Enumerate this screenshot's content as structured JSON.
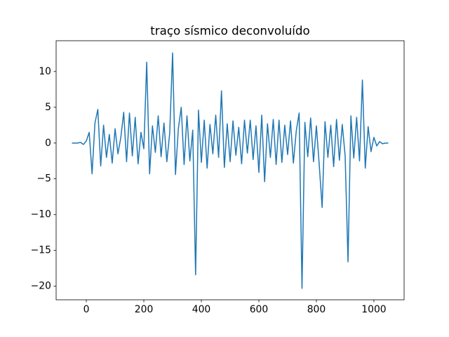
{
  "chart_data": {
    "type": "line",
    "title": "traço sísmico deconvoluído",
    "x": [
      -50,
      -40,
      -30,
      -20,
      -10,
      0,
      10,
      20,
      30,
      40,
      50,
      60,
      70,
      80,
      90,
      100,
      110,
      120,
      130,
      140,
      150,
      160,
      170,
      180,
      190,
      200,
      210,
      220,
      230,
      240,
      250,
      260,
      270,
      280,
      290,
      300,
      310,
      320,
      330,
      340,
      350,
      360,
      370,
      380,
      390,
      400,
      410,
      420,
      430,
      440,
      450,
      460,
      470,
      480,
      490,
      500,
      510,
      520,
      530,
      540,
      550,
      560,
      570,
      580,
      590,
      600,
      610,
      620,
      630,
      640,
      650,
      660,
      670,
      680,
      690,
      700,
      710,
      720,
      730,
      740,
      750,
      760,
      770,
      780,
      790,
      800,
      810,
      820,
      830,
      840,
      850,
      860,
      870,
      880,
      890,
      900,
      910,
      920,
      930,
      940,
      950,
      960,
      970,
      980,
      990,
      1000,
      1010,
      1020,
      1030,
      1040,
      1050
    ],
    "series": [
      {
        "color": "#1f77b4",
        "values": [
          0,
          0,
          0,
          0.1,
          -0.2,
          0.3,
          1.5,
          -4.3,
          2.8,
          4.7,
          -3.2,
          2.5,
          -2.0,
          1.2,
          -2.8,
          2.0,
          -1.5,
          0.8,
          4.3,
          -2.6,
          4.2,
          -1.8,
          3.6,
          -2.9,
          1.5,
          -0.8,
          11.3,
          -4.3,
          2.4,
          -1.3,
          3.8,
          -1.9,
          2.8,
          -2.6,
          1.4,
          12.6,
          -4.4,
          2.0,
          5.0,
          -3.0,
          3.8,
          -2.5,
          1.8,
          -18.4,
          4.6,
          -2.7,
          3.2,
          -3.5,
          2.6,
          -1.5,
          3.9,
          -2.0,
          7.3,
          -3.4,
          2.7,
          -2.6,
          3.1,
          -1.7,
          2.2,
          -2.9,
          3.2,
          -1.4,
          3.2,
          -2.3,
          2.4,
          -4.1,
          3.9,
          -5.4,
          2.7,
          -2.0,
          3.3,
          -3.0,
          3.2,
          -2.7,
          2.5,
          -1.6,
          3.1,
          -2.8,
          1.7,
          4.2,
          -20.3,
          2.9,
          -1.9,
          3.5,
          -2.6,
          2.4,
          -3.1,
          -9.0,
          3.0,
          -2.0,
          2.5,
          -3.3,
          3.3,
          -2.4,
          2.6,
          -1.8,
          -16.6,
          3.8,
          -2.1,
          3.6,
          -2.5,
          8.8,
          -3.5,
          2.3,
          -1.2,
          0.8,
          -0.4,
          0.2,
          -0.1,
          0,
          0
        ]
      }
    ],
    "xlim": [
      -105,
      1105
    ],
    "xticks": [
      0,
      200,
      400,
      600,
      800,
      1000
    ],
    "ylim": [
      -21.9,
      14.3
    ],
    "yticks": [
      {
        "value": -20,
        "label": "−20"
      },
      {
        "value": -15,
        "label": "−15"
      },
      {
        "value": -10,
        "label": "−10"
      },
      {
        "value": -5,
        "label": "−5"
      },
      0,
      5,
      10
    ]
  }
}
